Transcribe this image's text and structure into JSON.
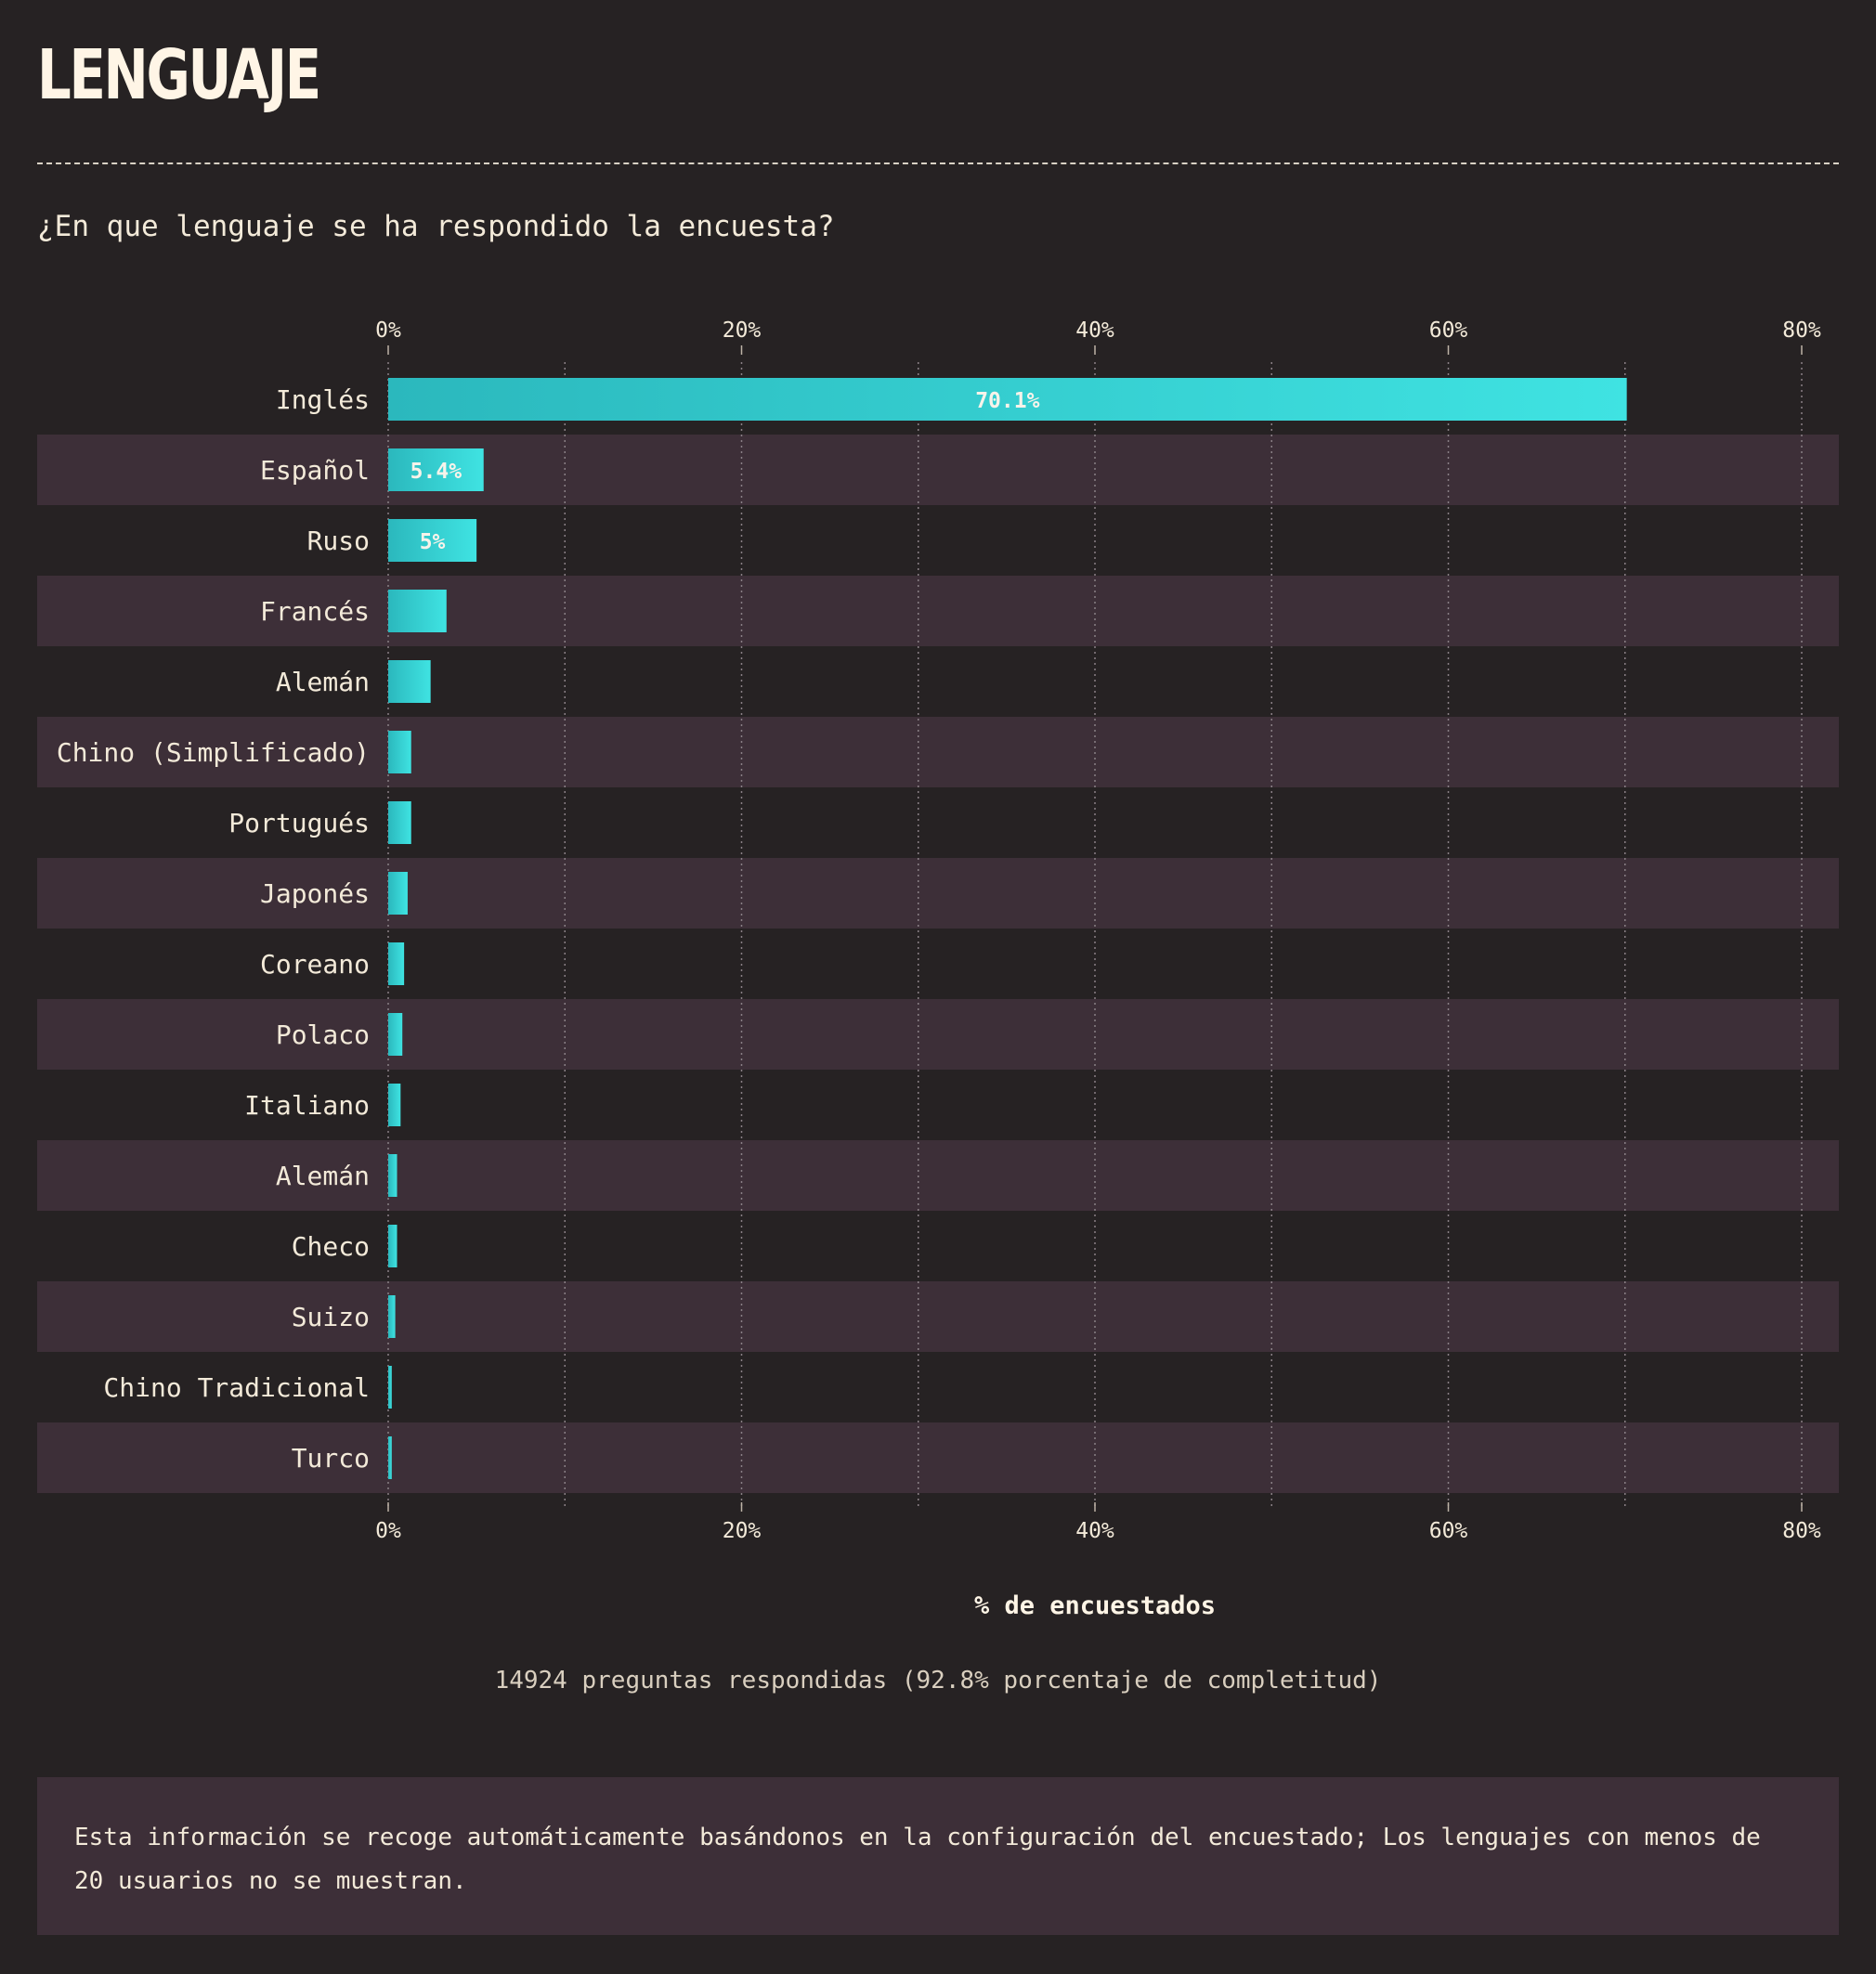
{
  "title": "LENGUAJE",
  "question": "¿En que lenguaje se ha respondido la encuesta?",
  "completion": "14924 preguntas respondidas (92.8% porcentaje de completitud)",
  "note": "Esta información se recoge automáticamente basándonos en la configuración del encuestado; Los lenguajes con menos de 20 usuarios no se muestran.",
  "colors": {
    "background": "#262223",
    "band": "#3d2f38",
    "bar_start": "#2bb8bd",
    "bar_end": "#3fe3e2",
    "text": "#f3ead9"
  },
  "chart_data": {
    "type": "bar",
    "orientation": "horizontal",
    "xlabel": "% de encuestados",
    "xlim": [
      0,
      80
    ],
    "xticks": [
      "0%",
      "20%",
      "40%",
      "60%",
      "80%"
    ],
    "grid": true,
    "categories": [
      "Inglés",
      "Español",
      "Ruso",
      "Francés",
      "Alemán",
      "Chino (Simplificado)",
      "Portugués",
      "Japonés",
      "Coreano",
      "Polaco",
      "Italiano",
      "Alemán",
      "Checo",
      "Suizo",
      "Chino Tradicional",
      "Turco"
    ],
    "values": [
      70.1,
      5.4,
      5.0,
      3.3,
      2.4,
      1.3,
      1.3,
      1.1,
      0.9,
      0.8,
      0.7,
      0.5,
      0.5,
      0.4,
      0.2,
      0.2
    ],
    "data_labels": [
      "70.1%",
      "5.4%",
      "5%",
      "",
      "",
      "",
      "",
      "",
      "",
      "",
      "",
      "",
      "",
      "",
      "",
      ""
    ]
  }
}
